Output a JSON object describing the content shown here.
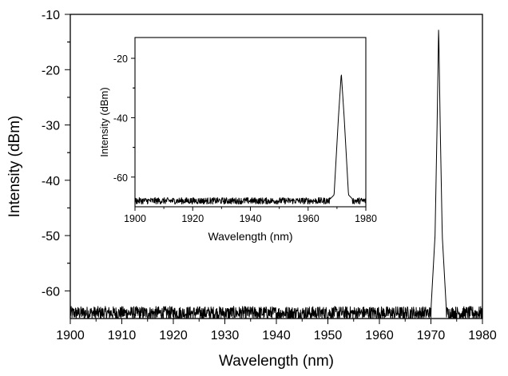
{
  "chart_data": [
    {
      "id": "main",
      "type": "line",
      "xlabel": "Wavelength (nm)",
      "ylabel": "Intensity (dBm)",
      "xlim": [
        1900,
        1980
      ],
      "ylim": [
        -65,
        -10
      ],
      "x_ticks": [
        1900,
        1910,
        1920,
        1930,
        1940,
        1950,
        1960,
        1970,
        1980
      ],
      "y_ticks": [
        -60,
        -50,
        -40,
        -30,
        -20,
        -10
      ],
      "grid": false,
      "line_color": "#000000",
      "noise_floor": -64,
      "series": [
        {
          "x": [
            1900,
            1910,
            1920,
            1930,
            1940,
            1950,
            1960,
            1968,
            1970,
            1970.8,
            1971.2,
            1971.5,
            1971.8,
            1972.2,
            1973,
            1975,
            1980
          ],
          "y": [
            -64,
            -64,
            -64,
            -64,
            -64,
            -64,
            -64,
            -64,
            -63.5,
            -50,
            -30,
            -12,
            -30,
            -50,
            -63.5,
            -64,
            -64
          ]
        }
      ]
    },
    {
      "id": "inset",
      "type": "line",
      "xlabel": "Wavelength (nm)",
      "ylabel": "Intensity (dBm)",
      "xlim": [
        1900,
        1980
      ],
      "ylim": [
        -70,
        -13
      ],
      "x_ticks": [
        1900,
        1920,
        1940,
        1960,
        1980
      ],
      "y_ticks": [
        -60,
        -40,
        -20
      ],
      "grid": false,
      "line_color": "#000000",
      "noise_floor": -68,
      "series": [
        {
          "x": [
            1900,
            1920,
            1940,
            1960,
            1967,
            1969,
            1970.5,
            1971.5,
            1972.5,
            1974,
            1976,
            1980
          ],
          "y": [
            -68,
            -68,
            -68,
            -68,
            -68,
            -66,
            -40,
            -25,
            -40,
            -66,
            -68,
            -68
          ]
        }
      ]
    }
  ]
}
